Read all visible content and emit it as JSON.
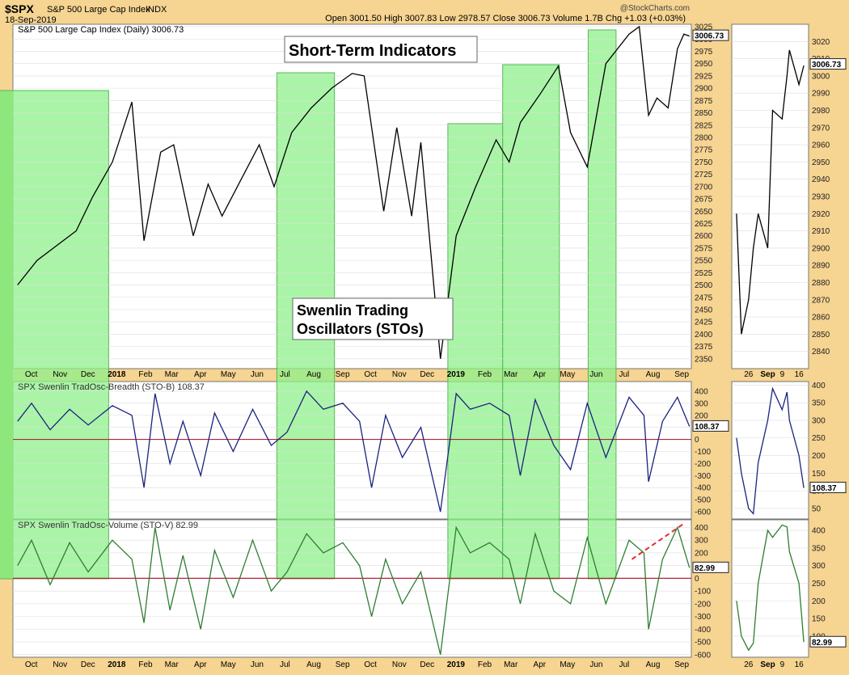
{
  "header": {
    "ticker": "$SPX",
    "name": "S&P 500 Large Cap Index",
    "exchange": "INDX",
    "date": "18-Sep-2019",
    "watermark": "@StockCharts.com",
    "quote": "Open 3001.50  High 3007.83  Low 2978.57  Close 3006.73  Volume 1.7B  Chg +1.03 (+0.03%)",
    "up_marker": "▲"
  },
  "annotations": {
    "short_term": "Short-Term Indicators",
    "stos_line1": "Swenlin Trading",
    "stos_line2": "Oscillators (STOs)"
  },
  "colors": {
    "background": "#f6d491",
    "panel": "#ffffff",
    "highlight": "#8ef08a",
    "price": "#000000",
    "breadth": "#1a237e",
    "volume": "#2e7d32",
    "zero_line": "#b0243a",
    "trend_line": "#e03030"
  },
  "chart_data": [
    {
      "type": "line",
      "title": "S&P 500 Large Cap Index (Daily) 3006.73",
      "ylim": [
        2330,
        3030
      ],
      "yticks": [
        2350,
        2375,
        2400,
        2425,
        2450,
        2475,
        2500,
        2525,
        2550,
        2575,
        2600,
        2625,
        2650,
        2675,
        2700,
        2725,
        2750,
        2775,
        2800,
        2825,
        2850,
        2875,
        2900,
        2925,
        2950,
        2975,
        3000,
        3025
      ],
      "last_value": "3006.73",
      "x_axis_labels": [
        "Oct",
        "Nov",
        "Dec",
        "2018",
        "Feb",
        "Mar",
        "Apr",
        "May",
        "Jun",
        "Jul",
        "Aug",
        "Sep",
        "Oct",
        "Nov",
        "Dec",
        "2019",
        "Feb",
        "Mar",
        "Apr",
        "May",
        "Jun",
        "Jul",
        "Aug",
        "Sep"
      ],
      "highlight_periods": [
        [
          "2017-09",
          "2018-01"
        ],
        [
          "2018-07",
          "2018-09"
        ],
        [
          "2019-01",
          "2019-03"
        ],
        [
          "2019-03",
          "2019-05"
        ],
        [
          "2019-06",
          "2019-07"
        ]
      ],
      "series": [
        {
          "x": [
            "2017-09-25",
            "2017-10-16",
            "2017-11-06",
            "2017-11-27",
            "2017-12-15",
            "2018-01-05",
            "2018-01-26",
            "2018-02-08",
            "2018-02-26",
            "2018-03-12",
            "2018-04-02",
            "2018-04-18",
            "2018-05-03",
            "2018-05-25",
            "2018-06-12",
            "2018-06-28",
            "2018-07-17",
            "2018-08-07",
            "2018-08-29",
            "2018-09-20",
            "2018-10-03",
            "2018-10-24",
            "2018-11-07",
            "2018-11-23",
            "2018-12-03",
            "2018-12-24",
            "2019-01-10",
            "2019-01-31",
            "2019-02-22",
            "2019-03-08",
            "2019-03-20",
            "2019-04-11",
            "2019-04-30",
            "2019-05-13",
            "2019-05-31",
            "2019-06-20",
            "2019-07-15",
            "2019-07-26",
            "2019-08-05",
            "2019-08-14",
            "2019-08-26",
            "2019-09-05",
            "2019-09-12",
            "2019-09-18"
          ],
          "values": [
            2500,
            2550,
            2580,
            2610,
            2680,
            2750,
            2872,
            2590,
            2770,
            2785,
            2600,
            2705,
            2640,
            2720,
            2785,
            2700,
            2810,
            2860,
            2900,
            2930,
            2925,
            2650,
            2820,
            2640,
            2790,
            2350,
            2600,
            2700,
            2795,
            2750,
            2830,
            2890,
            2945,
            2810,
            2740,
            2950,
            3010,
            3025,
            2845,
            2880,
            2860,
            2980,
            3010,
            3006
          ]
        }
      ]
    },
    {
      "type": "line",
      "title": "SPX Swenlin TradOsc-Breadth (STO-B) 108.37",
      "ylim": [
        -660,
        480
      ],
      "yticks": [
        400,
        300,
        200,
        100,
        0,
        -100,
        -200,
        -300,
        -400,
        -500,
        -600
      ],
      "last_value": "108.37",
      "series": [
        {
          "x": [
            "2017-09-25",
            "2017-10-10",
            "2017-10-30",
            "2017-11-20",
            "2017-12-10",
            "2018-01-05",
            "2018-01-26",
            "2018-02-08",
            "2018-02-20",
            "2018-03-08",
            "2018-03-22",
            "2018-04-10",
            "2018-04-25",
            "2018-05-15",
            "2018-06-05",
            "2018-06-25",
            "2018-07-12",
            "2018-08-02",
            "2018-08-20",
            "2018-09-10",
            "2018-09-28",
            "2018-10-11",
            "2018-10-26",
            "2018-11-13",
            "2018-12-03",
            "2018-12-24",
            "2019-01-10",
            "2019-01-25",
            "2019-02-15",
            "2019-03-08",
            "2019-03-20",
            "2019-04-05",
            "2019-04-25",
            "2019-05-13",
            "2019-05-31",
            "2019-06-20",
            "2019-07-15",
            "2019-07-31",
            "2019-08-05",
            "2019-08-20",
            "2019-09-05",
            "2019-09-18"
          ],
          "values": [
            150,
            300,
            80,
            250,
            120,
            280,
            200,
            -400,
            380,
            -200,
            150,
            -300,
            220,
            -100,
            250,
            -50,
            60,
            400,
            250,
            300,
            150,
            -400,
            200,
            -150,
            100,
            -600,
            380,
            250,
            300,
            200,
            -300,
            330,
            -50,
            -250,
            300,
            -150,
            350,
            200,
            -350,
            150,
            350,
            108
          ]
        }
      ]
    },
    {
      "type": "line",
      "title": "SPX Swenlin TradOsc-Volume (STO-V) 82.99",
      "ylim": [
        -620,
        460
      ],
      "yticks": [
        400,
        300,
        200,
        100,
        0,
        -100,
        -200,
        -300,
        -400,
        -500,
        -600
      ],
      "last_value": "82.99",
      "series": [
        {
          "x": [
            "2017-09-25",
            "2017-10-10",
            "2017-10-30",
            "2017-11-20",
            "2017-12-10",
            "2018-01-05",
            "2018-01-26",
            "2018-02-08",
            "2018-02-20",
            "2018-03-08",
            "2018-03-22",
            "2018-04-10",
            "2018-04-25",
            "2018-05-15",
            "2018-06-05",
            "2018-06-25",
            "2018-07-12",
            "2018-08-02",
            "2018-08-20",
            "2018-09-10",
            "2018-09-28",
            "2018-10-11",
            "2018-10-26",
            "2018-11-13",
            "2018-12-03",
            "2018-12-24",
            "2019-01-10",
            "2019-01-25",
            "2019-02-15",
            "2019-03-08",
            "2019-03-20",
            "2019-04-05",
            "2019-04-25",
            "2019-05-13",
            "2019-05-31",
            "2019-06-20",
            "2019-07-15",
            "2019-07-31",
            "2019-08-05",
            "2019-08-20",
            "2019-09-05",
            "2019-09-18"
          ],
          "values": [
            100,
            300,
            -50,
            280,
            50,
            300,
            150,
            -350,
            400,
            -250,
            180,
            -400,
            220,
            -150,
            300,
            -100,
            50,
            350,
            200,
            280,
            100,
            -300,
            150,
            -200,
            50,
            -600,
            400,
            200,
            280,
            150,
            -200,
            350,
            -100,
            -200,
            320,
            -200,
            300,
            200,
            -400,
            150,
            400,
            83
          ]
        }
      ]
    },
    {
      "type": "line",
      "title": "",
      "ylim": [
        2830,
        3030
      ],
      "yticks": [
        2840,
        2850,
        2860,
        2870,
        2880,
        2890,
        2900,
        2910,
        2920,
        2930,
        2940,
        2950,
        2960,
        2970,
        2980,
        2990,
        3000,
        3010,
        3020
      ],
      "last_value": "3006.73",
      "x_axis_labels": [
        "26",
        "Sep",
        "9",
        "16"
      ],
      "series": [
        {
          "x": [
            "2019-08-21",
            "2019-08-23",
            "2019-08-26",
            "2019-08-28",
            "2019-08-30",
            "2019-09-03",
            "2019-09-05",
            "2019-09-09",
            "2019-09-11",
            "2019-09-12",
            "2019-09-16",
            "2019-09-18"
          ],
          "values": [
            2920,
            2850,
            2870,
            2900,
            2920,
            2900,
            2980,
            2975,
            3000,
            3015,
            2995,
            3006
          ]
        }
      ]
    },
    {
      "type": "line",
      "title": "",
      "ylim": [
        20,
        410
      ],
      "yticks": [
        400,
        350,
        300,
        250,
        200,
        150,
        100,
        50
      ],
      "last_value": "108.37",
      "series": [
        {
          "x": [
            "2019-08-21",
            "2019-08-23",
            "2019-08-26",
            "2019-08-28",
            "2019-08-30",
            "2019-09-03",
            "2019-09-05",
            "2019-09-09",
            "2019-09-11",
            "2019-09-12",
            "2019-09-16",
            "2019-09-18"
          ],
          "values": [
            250,
            150,
            50,
            35,
            180,
            300,
            390,
            330,
            380,
            300,
            200,
            108
          ]
        }
      ]
    },
    {
      "type": "line",
      "title": "",
      "ylim": [
        40,
        430
      ],
      "yticks": [
        400,
        350,
        300,
        250,
        200,
        150,
        100
      ],
      "last_value": "82.99",
      "series": [
        {
          "x": [
            "2019-08-21",
            "2019-08-23",
            "2019-08-26",
            "2019-08-28",
            "2019-08-30",
            "2019-09-03",
            "2019-09-05",
            "2019-09-09",
            "2019-09-11",
            "2019-09-12",
            "2019-09-16",
            "2019-09-18"
          ],
          "values": [
            200,
            100,
            60,
            80,
            250,
            400,
            380,
            415,
            410,
            340,
            250,
            83
          ]
        }
      ]
    }
  ]
}
